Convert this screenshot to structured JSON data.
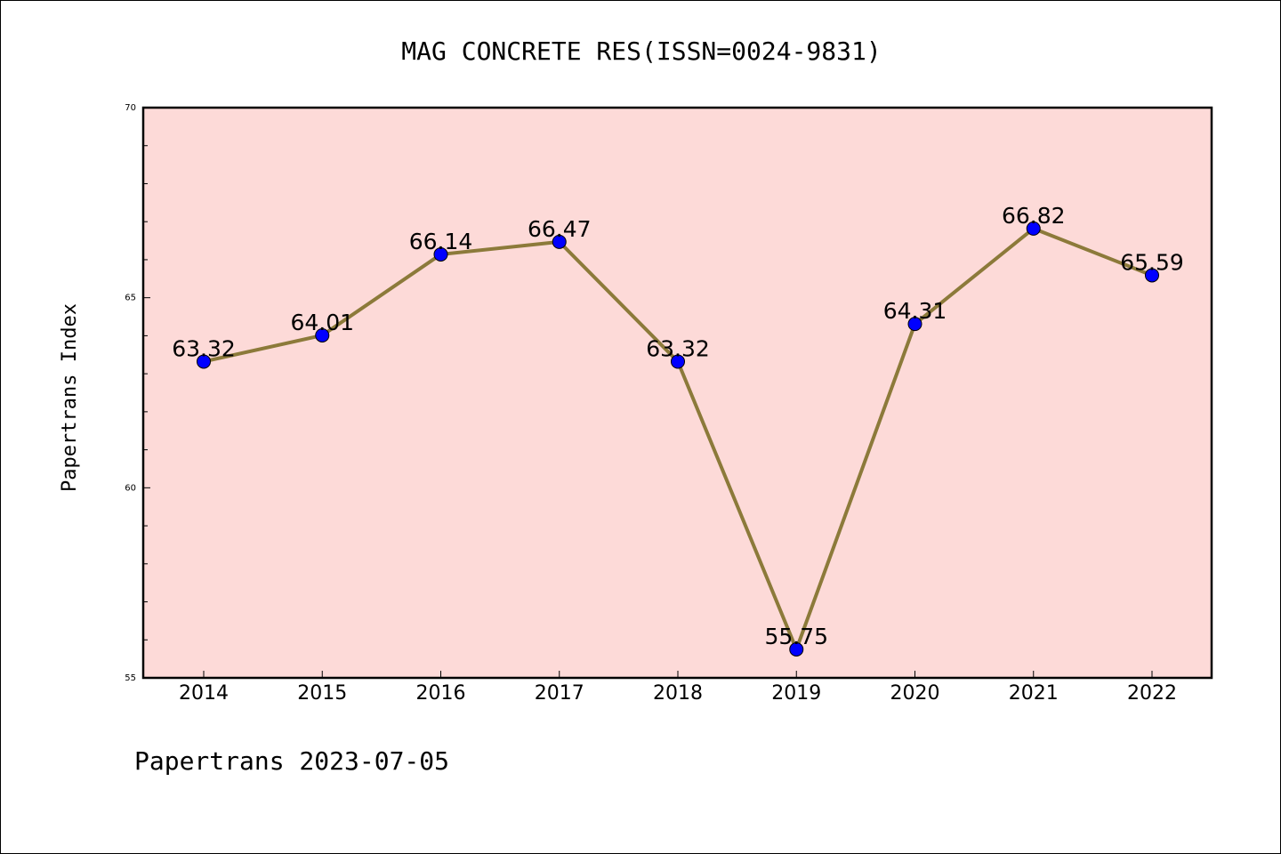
{
  "chart_data": {
    "type": "line",
    "title": "MAG CONCRETE RES(ISSN=0024-9831)",
    "xlabel": "",
    "ylabel": "Papertrans Index",
    "categories": [
      "2014",
      "2015",
      "2016",
      "2017",
      "2018",
      "2019",
      "2020",
      "2021",
      "2022"
    ],
    "values": [
      63.32,
      64.01,
      66.14,
      66.47,
      63.32,
      55.75,
      64.31,
      66.82,
      65.59
    ],
    "data_labels": [
      "63.32",
      "64.01",
      "66.14",
      "66.47",
      "63.32",
      "55.75",
      "64.31",
      "66.82",
      "65.59"
    ],
    "ylim": [
      55,
      70
    ],
    "yticks": [
      55,
      60,
      65,
      70
    ],
    "grid": false,
    "colors": {
      "plot_background": "#fddad8",
      "line": "#8c7a3a",
      "marker": "#0000ff"
    }
  },
  "footer": {
    "text": "Papertrans 2023-07-05"
  }
}
